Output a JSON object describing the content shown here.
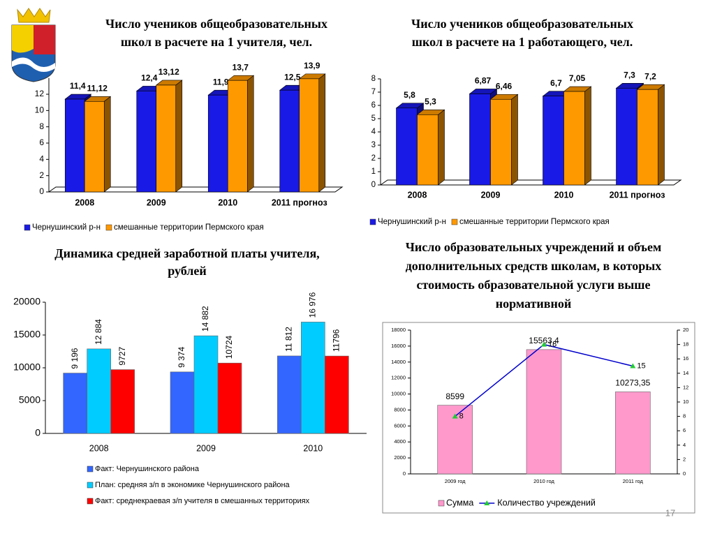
{
  "page_number": "17",
  "chart_data": [
    {
      "type": "bar",
      "title": [
        "Число учеников общеобразовательных",
        "школ в расчете на 1 учителя, чел."
      ],
      "categories": [
        "2008",
        "2009",
        "2010",
        "2011 прогноз"
      ],
      "series": [
        {
          "name": "Чернушинский р-н",
          "color": "#1a1ae6",
          "values": [
            11.4,
            12.4,
            11.9,
            12.5
          ],
          "value_labels": [
            "11,4",
            "12,4",
            "11,9",
            "12,5"
          ]
        },
        {
          "name": "смешанные территории Пермского края",
          "color": "#ff9900",
          "values": [
            11.12,
            13.12,
            13.7,
            13.9
          ],
          "value_labels": [
            "11,12",
            "13,12",
            "13,7",
            "13,9"
          ]
        }
      ],
      "ylim": [
        0,
        14
      ],
      "yticks": [
        0,
        2,
        4,
        6,
        8,
        10,
        12
      ]
    },
    {
      "type": "bar",
      "title": [
        "Число учеников общеобразовательных",
        "школ в расчете на 1 работающего, чел."
      ],
      "categories": [
        "2008",
        "2009",
        "2010",
        "2011 прогноз"
      ],
      "series": [
        {
          "name": "Чернушинский р-н",
          "color": "#1a1ae6",
          "values": [
            5.8,
            6.87,
            6.7,
            7.3
          ],
          "value_labels": [
            "5,8",
            "6,87",
            "6,7",
            "7,3"
          ]
        },
        {
          "name": "смешанные территории Пермского края",
          "color": "#ff9900",
          "values": [
            5.3,
            6.46,
            7.05,
            7.2
          ],
          "value_labels": [
            "5,3",
            "6,46",
            "7,05",
            "7,2"
          ]
        }
      ],
      "ylim": [
        0,
        8
      ],
      "yticks": [
        0,
        1,
        2,
        3,
        4,
        5,
        6,
        7,
        8
      ]
    },
    {
      "type": "bar",
      "title": [
        "Динамика средней заработной платы учителя,",
        "рублей"
      ],
      "categories": [
        "2008",
        "2009",
        "2010"
      ],
      "series": [
        {
          "name": "Факт: Чернушинского района",
          "color": "#3366ff",
          "values": [
            9196,
            9374,
            11812
          ],
          "value_labels": [
            "9 196",
            "9 374",
            "11 812"
          ]
        },
        {
          "name": "План: средняя з/п в экономике Чернушинского района",
          "color": "#00ccff",
          "values": [
            12884,
            14882,
            16976
          ],
          "value_labels": [
            "12 884",
            "14 882",
            "16 976"
          ]
        },
        {
          "name": "Факт: среднекраевая з/п учителя в смешанных территориях",
          "color": "#ff0000",
          "values": [
            9727,
            10724,
            11796
          ]
        }
      ],
      "ylim": [
        0,
        20000
      ],
      "yticks": [
        0,
        5000,
        10000,
        15000,
        20000
      ]
    },
    {
      "type": "bar",
      "title": [
        "Число образовательных учреждений и объем",
        "дополнительных средств школам, в которых",
        "стоимость образовательной услуги выше",
        "нормативной"
      ],
      "categories": [
        "2009 год",
        "2010 год",
        "2011 год"
      ],
      "series": [
        {
          "name": "Сумма",
          "color": "#ff99cc",
          "values": [
            8599,
            15563.4,
            10273.35
          ],
          "value_labels": [
            "8599",
            "15563,4",
            "10273,35"
          ]
        },
        {
          "name": "Количество учреждений",
          "color": "#0000cc",
          "type": "line",
          "axis": "y2",
          "values": [
            8,
            18,
            15
          ]
        }
      ],
      "ylim": [
        0,
        18000
      ],
      "yticks": [
        0,
        2000,
        4000,
        6000,
        8000,
        10000,
        12000,
        14000,
        16000,
        18000
      ],
      "y2lim": [
        0,
        20
      ],
      "y2ticks": [
        0,
        2,
        4,
        6,
        8,
        10,
        12,
        14,
        16,
        18,
        20
      ]
    }
  ]
}
